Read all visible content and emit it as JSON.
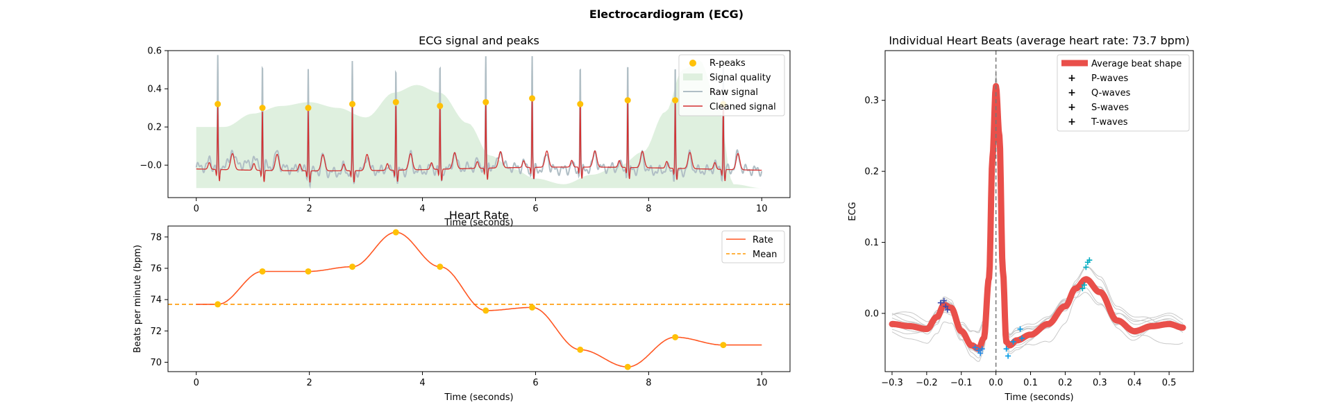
{
  "figure": {
    "title": "Electrocardiogram (ECG)"
  },
  "chart_data": [
    {
      "type": "line",
      "title": "ECG signal and peaks",
      "xlabel": "Time (seconds)",
      "ylabel": "",
      "xlim": [
        -0.5,
        10.5
      ],
      "ylim": [
        -0.17,
        0.6
      ],
      "xticks": [
        "0",
        "2",
        "4",
        "6",
        "8",
        "10"
      ],
      "xtick_values": [
        0,
        2,
        4,
        6,
        8,
        10
      ],
      "yticks": [
        "−0.0",
        "0.2",
        "0.4",
        "0.6"
      ],
      "ytick_values": [
        0.0,
        0.2,
        0.4,
        0.6
      ],
      "legend_position": "top-right",
      "legend": [
        "R-peaks",
        "Signal quality",
        "Raw signal",
        "Cleaned signal"
      ],
      "colors": {
        "rpeaks": "#FFC107",
        "quality": "#DFF0DF",
        "raw": "#B0BEC5",
        "cleaned": "#D32F2F"
      },
      "r_peaks": {
        "x": [
          0.38,
          1.17,
          1.98,
          2.76,
          3.53,
          4.31,
          5.12,
          5.94,
          6.79,
          7.63,
          8.47,
          9.32
        ],
        "y": [
          0.32,
          0.3,
          0.3,
          0.32,
          0.33,
          0.31,
          0.33,
          0.35,
          0.32,
          0.34,
          0.34,
          0.32
        ]
      },
      "signal_quality": {
        "x": [
          0,
          0.5,
          1.0,
          1.5,
          2.0,
          2.5,
          3.0,
          3.5,
          3.9,
          4.3,
          4.8,
          5.2,
          5.6,
          6.0,
          6.5,
          7.0,
          7.5,
          7.9,
          8.3,
          8.6,
          8.9,
          9.2,
          9.5,
          10.0
        ],
        "y": [
          0.2,
          0.2,
          0.27,
          0.31,
          0.33,
          0.3,
          0.25,
          0.38,
          0.42,
          0.38,
          0.22,
          0.05,
          -0.02,
          -0.07,
          -0.1,
          -0.05,
          0.0,
          0.07,
          0.28,
          0.5,
          0.55,
          0.35,
          -0.1,
          -0.12
        ]
      },
      "series": [
        {
          "name": "Raw signal"
        },
        {
          "name": "Cleaned signal"
        }
      ]
    },
    {
      "type": "line",
      "title": "Heart Rate",
      "xlabel": "Time (seconds)",
      "ylabel": "Beats per minute (bpm)",
      "xlim": [
        -0.5,
        10.5
      ],
      "ylim": [
        69.4,
        78.7
      ],
      "xticks": [
        "0",
        "2",
        "4",
        "6",
        "8",
        "10"
      ],
      "xtick_values": [
        0,
        2,
        4,
        6,
        8,
        10
      ],
      "yticks": [
        "70",
        "72",
        "74",
        "76",
        "78"
      ],
      "ytick_values": [
        70,
        72,
        74,
        76,
        78
      ],
      "legend_position": "top-right",
      "legend": [
        "Rate",
        "Mean"
      ],
      "colors": {
        "rate": "#FF5722",
        "mean": "#FF9800",
        "points": "#FFC107"
      },
      "points": {
        "x": [
          0.38,
          1.17,
          1.98,
          2.76,
          3.53,
          4.31,
          5.12,
          5.94,
          6.79,
          7.63,
          8.47,
          9.32
        ],
        "y": [
          73.7,
          75.8,
          75.8,
          76.1,
          78.3,
          76.1,
          73.3,
          73.5,
          70.8,
          69.7,
          71.6,
          71.1
        ]
      },
      "x_end": 10.0,
      "y_start": 73.7,
      "mean": 73.7
    },
    {
      "type": "line",
      "title": "Individual Heart Beats (average heart rate: 73.7 bpm)",
      "xlabel": "Time (seconds)",
      "ylabel": "ECG",
      "xlim": [
        -0.32,
        0.57
      ],
      "ylim": [
        -0.082,
        0.37
      ],
      "xticks": [
        "−0.3",
        "−0.2",
        "−0.1",
        "0.0",
        "0.1",
        "0.2",
        "0.3",
        "0.4",
        "0.5"
      ],
      "xtick_values": [
        -0.3,
        -0.2,
        -0.1,
        0.0,
        0.1,
        0.2,
        0.3,
        0.4,
        0.5
      ],
      "yticks": [
        "0.0",
        "0.1",
        "0.2",
        "0.3"
      ],
      "ytick_values": [
        0.0,
        0.1,
        0.2,
        0.3
      ],
      "legend_position": "top-right",
      "legend": [
        "Average beat shape",
        "P-waves",
        "Q-waves",
        "S-waves",
        "T-waves"
      ],
      "colors": {
        "average": "#E94F4A",
        "p": "#3949AB",
        "q": "#1E88E5",
        "s": "#039BE5",
        "t": "#00ACC1",
        "beats": "#C8C8C8"
      },
      "average_beat": {
        "x": [
          -0.3,
          -0.25,
          -0.2,
          -0.17,
          -0.15,
          -0.13,
          -0.1,
          -0.07,
          -0.05,
          -0.035,
          -0.02,
          -0.01,
          0.0,
          0.01,
          0.02,
          0.03,
          0.04,
          0.06,
          0.1,
          0.15,
          0.2,
          0.23,
          0.26,
          0.3,
          0.35,
          0.4,
          0.45,
          0.5,
          0.54
        ],
        "y": [
          -0.015,
          -0.018,
          -0.022,
          -0.005,
          0.012,
          0.008,
          -0.025,
          -0.045,
          -0.05,
          -0.035,
          0.05,
          0.22,
          0.32,
          0.25,
          0.06,
          -0.04,
          -0.045,
          -0.038,
          -0.03,
          -0.015,
          0.01,
          0.035,
          0.048,
          0.03,
          -0.01,
          -0.025,
          -0.018,
          -0.015,
          -0.02
        ]
      },
      "p_waves": {
        "x": [
          -0.16,
          -0.15,
          -0.145,
          -0.14
        ],
        "y": [
          0.015,
          0.018,
          0.01,
          0.005
        ]
      },
      "q_waves": {
        "x": [
          -0.06,
          -0.05,
          -0.045,
          -0.04
        ],
        "y": [
          -0.048,
          -0.052,
          -0.056,
          -0.05
        ]
      },
      "s_waves": {
        "x": [
          0.03,
          0.035,
          0.05,
          0.07,
          0.075
        ],
        "y": [
          -0.05,
          -0.06,
          -0.04,
          -0.022,
          -0.035
        ]
      },
      "t_waves": {
        "x": [
          0.25,
          0.26,
          0.265,
          0.27,
          0.255
        ],
        "y": [
          0.035,
          0.065,
          0.072,
          0.075,
          0.04
        ]
      }
    }
  ]
}
